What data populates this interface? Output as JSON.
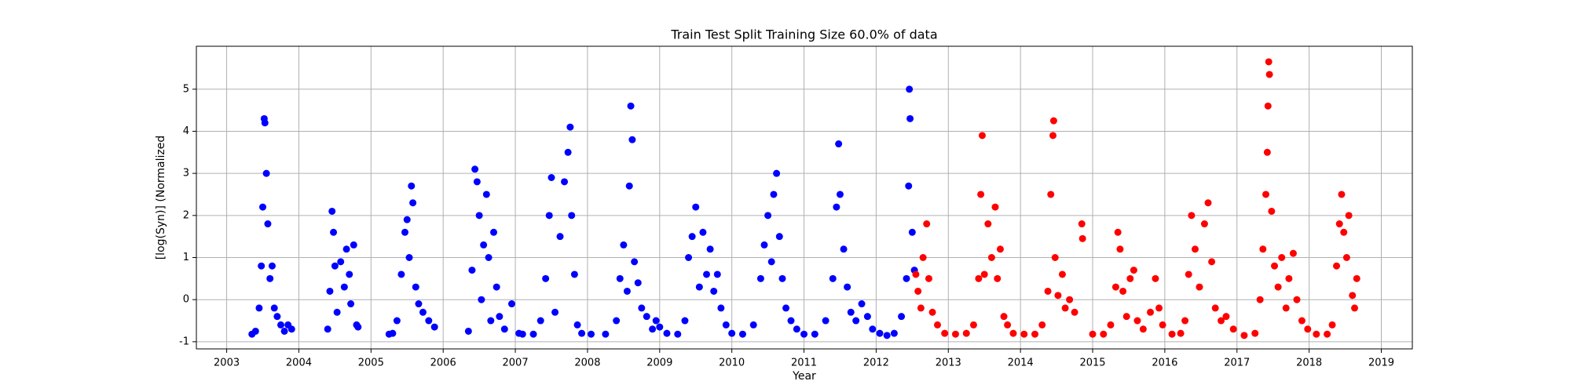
{
  "chart_data": {
    "type": "scatter",
    "title": "Train Test Split Training Size 60.0% of data",
    "x_label": "Year",
    "y_label": "[log(Syn)] (Normalized",
    "xlim": [
      2002.58,
      2019.43
    ],
    "ylim": [
      -1.17,
      6.02
    ],
    "xticks": [
      2003,
      2004,
      2005,
      2006,
      2007,
      2008,
      2009,
      2010,
      2011,
      2012,
      2013,
      2014,
      2015,
      2016,
      2017,
      2018,
      2019
    ],
    "yticks": [
      -1,
      0,
      1,
      2,
      3,
      4,
      5
    ],
    "grid": true,
    "series": [
      {
        "color": "#0000ff",
        "x": [
          2003.35,
          2003.4,
          2003.45,
          2003.48,
          2003.5,
          2003.52,
          2003.53,
          2003.55,
          2003.57,
          2003.6,
          2003.63,
          2003.66,
          2003.7,
          2003.75,
          2003.8,
          2003.85,
          2003.9,
          2004.4,
          2004.43,
          2004.46,
          2004.48,
          2004.5,
          2004.53,
          2004.58,
          2004.63,
          2004.66,
          2004.7,
          2004.72,
          2004.76,
          2004.8,
          2004.82,
          2005.25,
          2005.3,
          2005.36,
          2005.42,
          2005.47,
          2005.5,
          2005.53,
          2005.56,
          2005.58,
          2005.62,
          2005.66,
          2005.72,
          2005.8,
          2005.88,
          2006.35,
          2006.4,
          2006.44,
          2006.47,
          2006.5,
          2006.53,
          2006.56,
          2006.6,
          2006.63,
          2006.66,
          2006.7,
          2006.74,
          2006.78,
          2006.85,
          2006.95,
          2007.05,
          2007.1,
          2007.25,
          2007.35,
          2007.42,
          2007.47,
          2007.5,
          2007.55,
          2007.62,
          2007.68,
          2007.73,
          2007.76,
          2007.78,
          2007.82,
          2007.86,
          2007.92,
          2008.05,
          2008.25,
          2008.4,
          2008.45,
          2008.5,
          2008.55,
          2008.58,
          2008.6,
          2008.62,
          2008.65,
          2008.7,
          2008.75,
          2008.82,
          2008.9,
          2008.95,
          2009.0,
          2009.1,
          2009.25,
          2009.35,
          2009.4,
          2009.45,
          2009.5,
          2009.55,
          2009.6,
          2009.65,
          2009.7,
          2009.75,
          2009.8,
          2009.85,
          2009.92,
          2010.0,
          2010.15,
          2010.3,
          2010.4,
          2010.45,
          2010.5,
          2010.55,
          2010.58,
          2010.62,
          2010.66,
          2010.7,
          2010.75,
          2010.82,
          2010.9,
          2011.0,
          2011.15,
          2011.3,
          2011.4,
          2011.45,
          2011.48,
          2011.5,
          2011.55,
          2011.6,
          2011.65,
          2011.72,
          2011.8,
          2011.88,
          2011.95,
          2012.05,
          2012.15,
          2012.25,
          2012.35,
          2012.42,
          2012.45,
          2012.46,
          2012.47,
          2012.5,
          2012.53
        ],
        "values": [
          -0.82,
          -0.75,
          -0.2,
          0.8,
          2.2,
          4.3,
          4.2,
          3.0,
          1.8,
          0.5,
          0.8,
          -0.2,
          -0.4,
          -0.6,
          -0.75,
          -0.6,
          -0.7,
          -0.7,
          0.2,
          2.1,
          1.6,
          0.8,
          -0.3,
          0.9,
          0.3,
          1.2,
          0.6,
          -0.1,
          1.3,
          -0.6,
          -0.65,
          -0.82,
          -0.8,
          -0.5,
          0.6,
          1.6,
          1.9,
          1.0,
          2.7,
          2.3,
          0.3,
          -0.1,
          -0.3,
          -0.5,
          -0.65,
          -0.75,
          0.7,
          3.1,
          2.8,
          2.0,
          0.0,
          1.3,
          2.5,
          1.0,
          -0.5,
          1.6,
          0.3,
          -0.4,
          -0.7,
          -0.1,
          -0.8,
          -0.82,
          -0.82,
          -0.5,
          0.5,
          2.0,
          2.9,
          -0.3,
          1.5,
          2.8,
          3.5,
          4.1,
          2.0,
          0.6,
          -0.6,
          -0.8,
          -0.82,
          -0.82,
          -0.5,
          0.5,
          1.3,
          0.2,
          2.7,
          4.6,
          3.8,
          0.9,
          0.4,
          -0.2,
          -0.4,
          -0.7,
          -0.5,
          -0.65,
          -0.8,
          -0.82,
          -0.5,
          1.0,
          1.5,
          2.2,
          0.3,
          1.6,
          0.6,
          1.2,
          0.2,
          0.6,
          -0.2,
          -0.6,
          -0.8,
          -0.82,
          -0.6,
          0.5,
          1.3,
          2.0,
          0.9,
          2.5,
          3.0,
          1.5,
          0.5,
          -0.2,
          -0.5,
          -0.7,
          -0.82,
          -0.82,
          -0.5,
          0.5,
          2.2,
          3.7,
          2.5,
          1.2,
          0.3,
          -0.3,
          -0.5,
          -0.1,
          -0.4,
          -0.7,
          -0.8,
          -0.85,
          -0.8,
          -0.4,
          0.5,
          2.7,
          5.0,
          4.3,
          1.6,
          0.7
        ]
      },
      {
        "color": "#ff0000",
        "x": [
          2012.55,
          2012.58,
          2012.62,
          2012.65,
          2012.7,
          2012.73,
          2012.78,
          2012.85,
          2012.95,
          2013.1,
          2013.25,
          2013.35,
          2013.42,
          2013.45,
          2013.47,
          2013.5,
          2013.55,
          2013.6,
          2013.65,
          2013.68,
          2013.72,
          2013.77,
          2013.82,
          2013.9,
          2014.05,
          2014.2,
          2014.3,
          2014.38,
          2014.42,
          2014.45,
          2014.46,
          2014.48,
          2014.52,
          2014.58,
          2014.62,
          2014.68,
          2014.75,
          2014.85,
          2014.86,
          2015.0,
          2015.15,
          2015.25,
          2015.32,
          2015.35,
          2015.38,
          2015.42,
          2015.47,
          2015.52,
          2015.57,
          2015.62,
          2015.7,
          2015.8,
          2015.87,
          2015.92,
          2015.97,
          2016.1,
          2016.22,
          2016.28,
          2016.33,
          2016.37,
          2016.42,
          2016.48,
          2016.55,
          2016.6,
          2016.65,
          2016.7,
          2016.78,
          2016.85,
          2016.95,
          2017.1,
          2017.25,
          2017.32,
          2017.36,
          2017.4,
          2017.42,
          2017.43,
          2017.44,
          2017.45,
          2017.48,
          2017.52,
          2017.57,
          2017.62,
          2017.68,
          2017.72,
          2017.78,
          2017.83,
          2017.9,
          2017.98,
          2018.1,
          2018.25,
          2018.32,
          2018.38,
          2018.42,
          2018.45,
          2018.48,
          2018.52,
          2018.55,
          2018.6,
          2018.63,
          2018.66
        ],
        "values": [
          0.6,
          0.2,
          -0.2,
          1.0,
          1.8,
          0.5,
          -0.3,
          -0.6,
          -0.8,
          -0.82,
          -0.8,
          -0.6,
          0.5,
          2.5,
          3.9,
          0.6,
          1.8,
          1.0,
          2.2,
          0.5,
          1.2,
          -0.4,
          -0.6,
          -0.8,
          -0.82,
          -0.82,
          -0.6,
          0.2,
          2.5,
          3.9,
          4.25,
          1.0,
          0.1,
          0.6,
          -0.2,
          0.0,
          -0.3,
          1.8,
          1.45,
          -0.82,
          -0.82,
          -0.6,
          0.3,
          1.6,
          1.2,
          0.2,
          -0.4,
          0.5,
          0.7,
          -0.5,
          -0.7,
          -0.3,
          0.5,
          -0.2,
          -0.6,
          -0.82,
          -0.8,
          -0.5,
          0.6,
          2.0,
          1.2,
          0.3,
          1.8,
          2.3,
          0.9,
          -0.2,
          -0.5,
          -0.4,
          -0.7,
          -0.85,
          -0.8,
          0.0,
          1.2,
          2.5,
          3.5,
          4.6,
          5.65,
          5.35,
          2.1,
          0.8,
          0.3,
          1.0,
          -0.2,
          0.5,
          1.1,
          0.0,
          -0.5,
          -0.7,
          -0.82,
          -0.82,
          -0.6,
          0.8,
          1.8,
          2.5,
          1.6,
          1.0,
          2.0,
          0.1,
          -0.2,
          0.5
        ]
      }
    ]
  }
}
